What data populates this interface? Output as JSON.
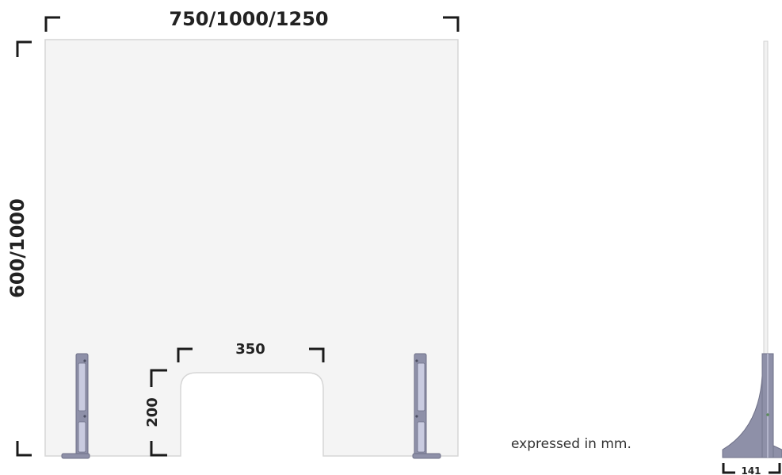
{
  "front_view": {
    "width_label": "750/1000/1250",
    "height_label": "600/1000",
    "opening_width_label": "350",
    "opening_height_label": "200"
  },
  "side_view": {
    "depth_label": "141"
  },
  "units_note": "expressed in mm.",
  "colors": {
    "panel_fill": "#f4f4f4",
    "panel_edge": "#d6d6d6",
    "bracket": "#1a1a1a",
    "foot_metal": "#8e90a8",
    "foot_dark": "#6f7188",
    "foot_light": "#c9cbe0"
  }
}
